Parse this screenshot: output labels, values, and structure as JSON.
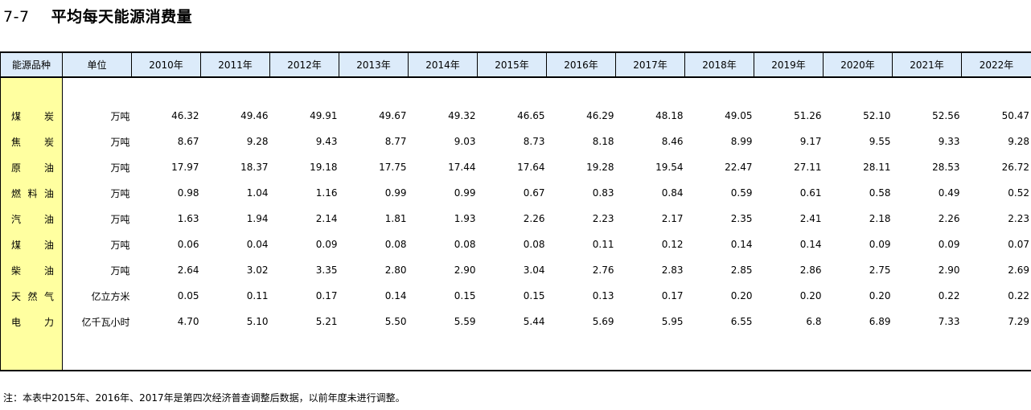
{
  "title": {
    "number": "7-7",
    "text": "平均每天能源消费量"
  },
  "table": {
    "header": {
      "name": "能源品种",
      "unit": "单位",
      "years": [
        "2010年",
        "2011年",
        "2012年",
        "2013年",
        "2014年",
        "2015年",
        "2016年",
        "2017年",
        "2018年",
        "2019年",
        "2020年",
        "2021年",
        "2022年"
      ]
    },
    "rows": [
      {
        "name": "煤炭",
        "unit": "万吨",
        "values": [
          "46.32",
          "49.46",
          "49.91",
          "49.67",
          "49.32",
          "46.65",
          "46.29",
          "48.18",
          "49.05",
          "51.26",
          "52.10",
          "52.56",
          "50.47"
        ]
      },
      {
        "name": "焦炭",
        "unit": "万吨",
        "values": [
          "8.67",
          "9.28",
          "9.43",
          "8.77",
          "9.03",
          "8.73",
          "8.18",
          "8.46",
          "8.99",
          "9.17",
          "9.55",
          "9.33",
          "9.28"
        ]
      },
      {
        "name": "原油",
        "unit": "万吨",
        "values": [
          "17.97",
          "18.37",
          "19.18",
          "17.75",
          "17.44",
          "17.64",
          "19.28",
          "19.54",
          "22.47",
          "27.11",
          "28.11",
          "28.53",
          "26.72"
        ]
      },
      {
        "name": "燃料油",
        "unit": "万吨",
        "values": [
          "0.98",
          "1.04",
          "1.16",
          "0.99",
          "0.99",
          "0.67",
          "0.83",
          "0.84",
          "0.59",
          "0.61",
          "0.58",
          "0.49",
          "0.52"
        ]
      },
      {
        "name": "汽油",
        "unit": "万吨",
        "values": [
          "1.63",
          "1.94",
          "2.14",
          "1.81",
          "1.93",
          "2.26",
          "2.23",
          "2.17",
          "2.35",
          "2.41",
          "2.18",
          "2.26",
          "2.23"
        ]
      },
      {
        "name": "煤油",
        "unit": "万吨",
        "values": [
          "0.06",
          "0.04",
          "0.09",
          "0.08",
          "0.08",
          "0.08",
          "0.11",
          "0.12",
          "0.14",
          "0.14",
          "0.09",
          "0.09",
          "0.07"
        ]
      },
      {
        "name": "柴油",
        "unit": "万吨",
        "values": [
          "2.64",
          "3.02",
          "3.35",
          "2.80",
          "2.90",
          "3.04",
          "2.76",
          "2.83",
          "2.85",
          "2.86",
          "2.75",
          "2.90",
          "2.69"
        ]
      },
      {
        "name": "天然气",
        "unit": "亿立方米",
        "values": [
          "0.05",
          "0.11",
          "0.17",
          "0.14",
          "0.15",
          "0.15",
          "0.13",
          "0.17",
          "0.20",
          "0.20",
          "0.20",
          "0.22",
          "0.22"
        ]
      },
      {
        "name": "电力",
        "unit": "亿千瓦小时",
        "values": [
          "4.70",
          "5.10",
          "5.21",
          "5.50",
          "5.59",
          "5.44",
          "5.69",
          "5.95",
          "6.55",
          "6.8",
          "6.89",
          "7.33",
          "7.29"
        ]
      }
    ]
  },
  "note": "注：本表中2015年、2016年、2017年是第四次经济普查调整后数据，以前年度未进行调整。"
}
